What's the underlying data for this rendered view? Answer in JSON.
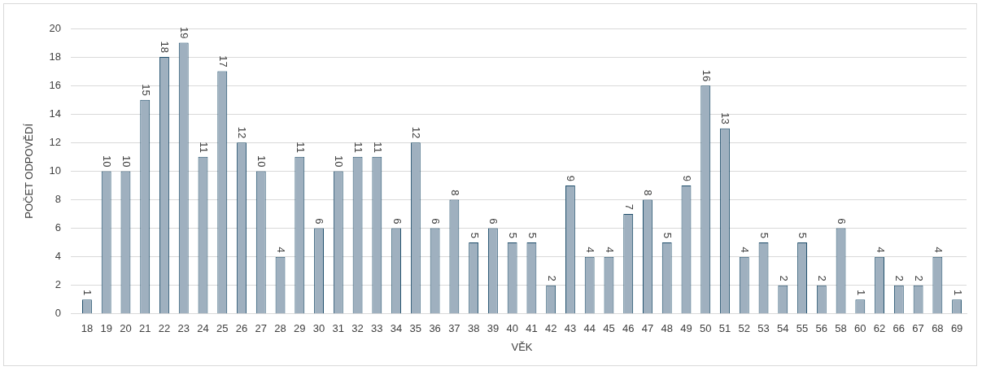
{
  "chart_data": {
    "type": "bar",
    "xlabel": "VĚK",
    "ylabel": "POČET ODPOVĚDÍ",
    "categories": [
      "18",
      "19",
      "20",
      "21",
      "22",
      "23",
      "24",
      "25",
      "26",
      "27",
      "28",
      "29",
      "30",
      "31",
      "32",
      "33",
      "34",
      "35",
      "36",
      "37",
      "38",
      "39",
      "40",
      "41",
      "42",
      "43",
      "44",
      "45",
      "46",
      "47",
      "48",
      "49",
      "50",
      "51",
      "52",
      "53",
      "54",
      "55",
      "56",
      "58",
      "60",
      "62",
      "66",
      "67",
      "68",
      "69"
    ],
    "values": [
      1,
      10,
      10,
      15,
      18,
      19,
      11,
      17,
      12,
      10,
      4,
      11,
      6,
      10,
      11,
      11,
      6,
      12,
      6,
      8,
      5,
      6,
      5,
      5,
      2,
      9,
      4,
      4,
      7,
      8,
      5,
      9,
      16,
      13,
      4,
      5,
      2,
      5,
      2,
      6,
      1,
      4,
      2,
      2,
      4,
      1
    ],
    "color": "#9fb0bf",
    "ylim": [
      0,
      20
    ],
    "yticks": [
      0,
      2,
      4,
      6,
      8,
      10,
      12,
      14,
      16,
      18,
      20
    ],
    "grid": "y",
    "data_labels": true,
    "legend": false
  }
}
